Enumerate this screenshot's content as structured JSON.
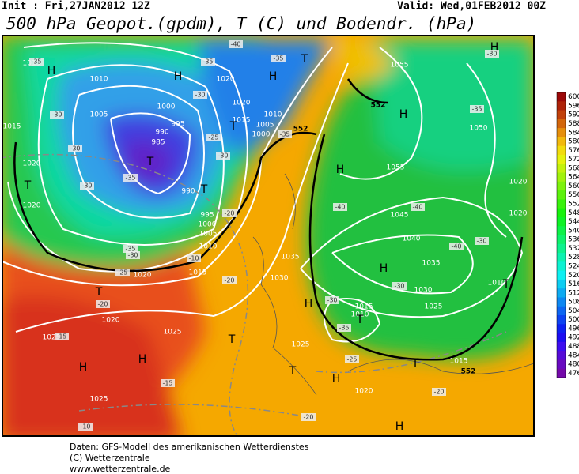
{
  "header": {
    "init": "Init : Fri,27JAN2012 12Z",
    "valid": "Valid: Wed,01FEB2012 00Z",
    "title": "500 hPa Geopot.(gpdm), T (C) und Bodendr. (hPa)"
  },
  "map": {
    "pressure_labels": [
      "1015",
      "1010",
      "1005",
      "1000",
      "995",
      "990",
      "985",
      "990",
      "995",
      "1000",
      "1005",
      "1010",
      "1015",
      "1020",
      "1020",
      "1015",
      "1010",
      "1005",
      "1000",
      "1015",
      "1020",
      "1020",
      "1020",
      "1020",
      "1025",
      "1025",
      "1025",
      "1035",
      "1030",
      "1025",
      "1020",
      "1015",
      "1010",
      "1020",
      "1020",
      "1045",
      "1040",
      "1035",
      "1030",
      "1025",
      "1015",
      "1010",
      "1055",
      "1055",
      "1050"
    ],
    "high_low_labels": [
      "H",
      "H",
      "H",
      "H",
      "H",
      "H",
      "H",
      "H",
      "H",
      "H",
      "H",
      "H",
      "T",
      "T",
      "T",
      "T",
      "T",
      "T",
      "T",
      "T",
      "T",
      "T",
      "T"
    ],
    "contour_labels": [
      "552",
      "552",
      "552"
    ],
    "temperature_labels": [
      "-40",
      "-35",
      "-30",
      "-30",
      "-35",
      "-30",
      "-20",
      "-15",
      "-15",
      "-10",
      "-20",
      "-20",
      "-25",
      "-35",
      "-30",
      "-30",
      "-40",
      "-40",
      "-40",
      "-30",
      "-35",
      "-30",
      "-35",
      "-30",
      "-25",
      "-20",
      "-20",
      "-10",
      "-30",
      "-25",
      "-35",
      "-35",
      "-30",
      "-35"
    ]
  },
  "colorbar": {
    "labels": [
      600,
      596,
      592,
      588,
      584,
      580,
      576,
      572,
      568,
      564,
      560,
      556,
      552,
      548,
      544,
      540,
      536,
      532,
      528,
      524,
      520,
      516,
      512,
      508,
      504,
      500,
      496,
      492,
      488,
      484,
      480,
      476
    ]
  },
  "footer": {
    "lines": [
      "Daten: GFS-Modell des amerikanischen Wetterdienstes",
      "(C) Wetterzentrale",
      "www.wetterzentrale.de"
    ]
  }
}
